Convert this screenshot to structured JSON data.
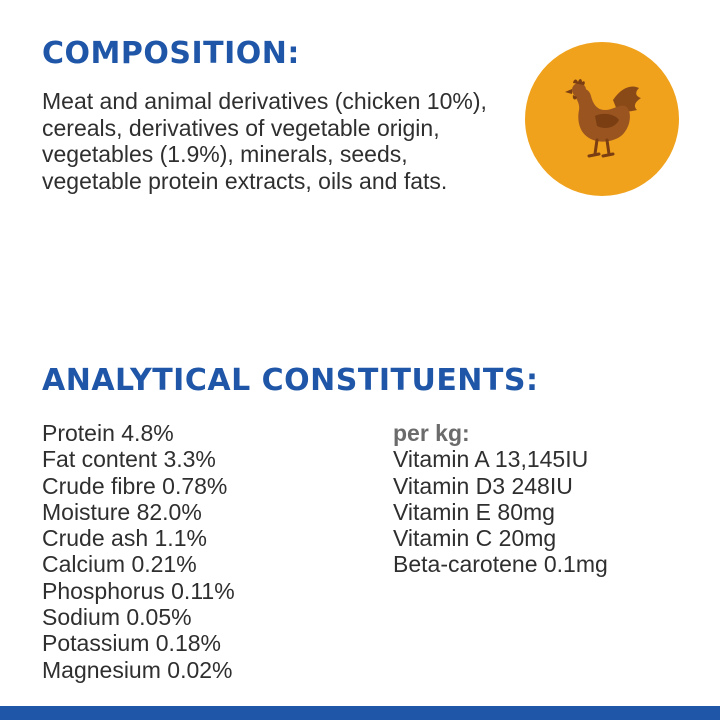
{
  "composition": {
    "heading": "COMPOSITION:",
    "text": "Meat and animal derivatives (chicken 10%), cereals, derivatives of vegetable origin, vegetables (1.9%), minerals, seeds, vegetable protein extracts, oils and fats.",
    "icon": "chicken-icon",
    "badge_color": "#f0a21c"
  },
  "analytical": {
    "heading": "ANALYTICAL CONSTITUENTS:",
    "constituents": [
      "Protein 4.8%",
      "Fat content 3.3%",
      "Crude fibre 0.78%",
      "Moisture 82.0%",
      "Crude ash 1.1%",
      "Calcium 0.21%",
      "Phosphorus 0.11%",
      "Sodium 0.05%",
      "Potassium 0.18%",
      "Magnesium 0.02%"
    ],
    "per_kg_label": "per kg:",
    "vitamins": [
      "Vitamin A 13,145IU",
      "Vitamin D3 248IU",
      "Vitamin E 80mg",
      "Vitamin C 20mg",
      "Beta-carotene 0.1mg"
    ]
  },
  "colors": {
    "heading_blue": "#1f56a8",
    "footer_bar": "#1f56a8"
  }
}
